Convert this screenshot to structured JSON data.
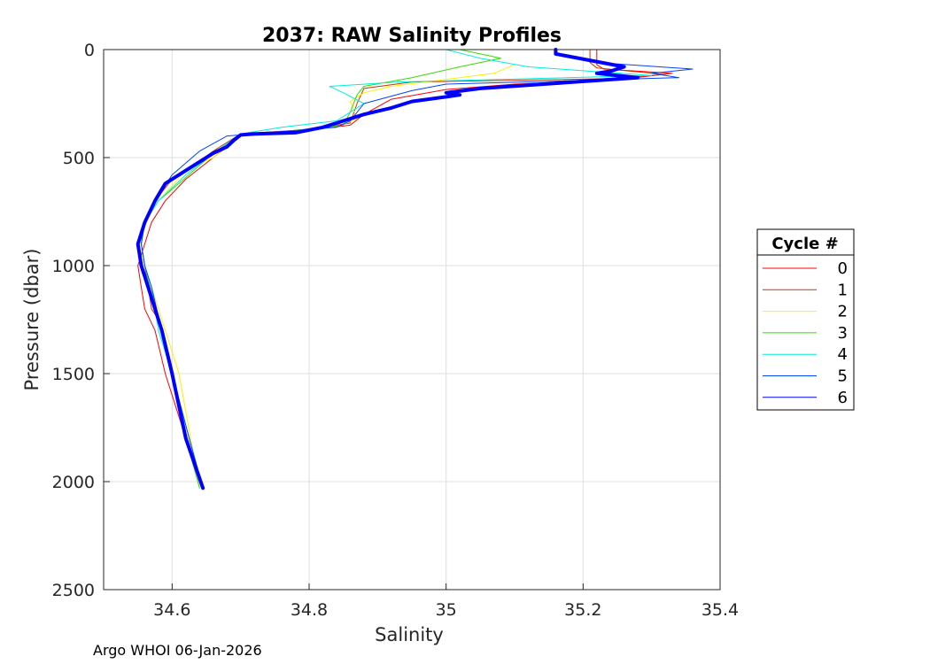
{
  "chart_data": {
    "type": "line",
    "title": "2037: RAW Salinity Profiles",
    "xlabel": "Salinity",
    "ylabel": "Pressure (dbar)",
    "xlim": [
      34.5,
      35.4
    ],
    "ylim": [
      0,
      2500
    ],
    "y_reversed": true,
    "grid": true,
    "xticks": [
      34.6,
      34.8,
      35,
      35.2,
      35.4
    ],
    "xtick_labels": [
      "34.6",
      "34.8",
      "35",
      "35.2",
      "35.4"
    ],
    "yticks": [
      0,
      500,
      1000,
      1500,
      2000,
      2500
    ],
    "ytick_labels": [
      "0",
      "500",
      "1000",
      "1500",
      "2000",
      "2500"
    ],
    "legend": {
      "title": "Cycle #",
      "placement": "outside-right"
    },
    "series": [
      {
        "name": "0",
        "color": "#ff0000",
        "width": 1,
        "x": [
          35.22,
          35.22,
          35.23,
          35.33,
          35.25,
          35.1,
          35.0,
          34.92,
          34.88,
          34.86,
          34.78,
          34.7,
          34.68,
          34.66,
          34.62,
          34.59,
          34.57,
          34.56,
          34.55,
          34.555,
          34.56,
          34.575,
          34.59,
          34.61,
          34.63,
          34.645
        ],
        "y": [
          0,
          70,
          90,
          110,
          140,
          160,
          185,
          230,
          300,
          350,
          380,
          395,
          450,
          500,
          600,
          700,
          800,
          900,
          1000,
          1100,
          1200,
          1300,
          1500,
          1700,
          1900,
          2030
        ]
      },
      {
        "name": "1",
        "color": "#cc3300",
        "width": 1,
        "x": [
          35.21,
          35.21,
          35.22,
          35.32,
          35.24,
          34.95,
          34.88,
          34.87,
          34.86,
          34.8,
          34.7,
          34.66,
          34.63,
          34.6,
          34.575,
          34.56,
          34.555,
          34.56,
          34.565,
          34.57,
          34.58,
          34.6,
          34.62,
          34.645
        ],
        "y": [
          0,
          60,
          85,
          115,
          135,
          150,
          180,
          250,
          340,
          370,
          390,
          470,
          540,
          600,
          700,
          800,
          900,
          1000,
          1100,
          1200,
          1250,
          1500,
          1800,
          2030
        ]
      },
      {
        "name": "2",
        "color": "#ffee00",
        "width": 1,
        "x": [
          35.1,
          35.07,
          34.97,
          34.92,
          34.88,
          34.86,
          34.87,
          34.84,
          34.78,
          34.7,
          34.66,
          34.62,
          34.58,
          34.56,
          34.555,
          34.56,
          34.57,
          34.58,
          34.61,
          34.64
        ],
        "y": [
          70,
          110,
          150,
          170,
          200,
          240,
          320,
          360,
          380,
          395,
          500,
          560,
          700,
          800,
          900,
          1000,
          1100,
          1200,
          1500,
          2030
        ]
      },
      {
        "name": "3",
        "color": "#33dd00",
        "width": 1,
        "x": [
          35.02,
          35.08,
          35.02,
          34.95,
          34.88,
          34.87,
          34.86,
          34.85,
          34.76,
          34.7,
          34.66,
          34.61,
          34.58,
          34.56,
          34.555,
          34.56,
          34.575,
          34.6,
          34.62,
          34.64
        ],
        "y": [
          0,
          40,
          80,
          130,
          170,
          210,
          290,
          350,
          380,
          400,
          480,
          620,
          700,
          800,
          900,
          1000,
          1200,
          1500,
          1800,
          2030
        ]
      },
      {
        "name": "4",
        "color": "#00eedd",
        "width": 1,
        "x": [
          35.0,
          35.05,
          35.12,
          35.3,
          34.93,
          34.83,
          34.85,
          34.88,
          34.84,
          34.76,
          34.7,
          34.66,
          34.62,
          34.58,
          34.56,
          34.555,
          34.56,
          34.57,
          34.58,
          34.6,
          34.625,
          34.645
        ],
        "y": [
          0,
          40,
          80,
          120,
          150,
          170,
          200,
          250,
          330,
          360,
          390,
          480,
          580,
          700,
          800,
          900,
          1000,
          1100,
          1300,
          1500,
          1800,
          2030
        ]
      },
      {
        "name": "5",
        "color": "#0044ff",
        "width": 1,
        "x": [
          35.22,
          35.36,
          35.3,
          35.34,
          35.0,
          34.95,
          34.88,
          34.86,
          34.84,
          34.74,
          34.68,
          34.64,
          34.6,
          34.575,
          34.56,
          34.555,
          34.56,
          34.57,
          34.585,
          34.6,
          34.625,
          34.645
        ],
        "y": [
          60,
          90,
          110,
          130,
          160,
          190,
          250,
          330,
          360,
          385,
          400,
          470,
          580,
          700,
          800,
          900,
          1000,
          1100,
          1300,
          1500,
          1800,
          2030
        ]
      },
      {
        "name": "6",
        "color": "#0000ff",
        "width": 4,
        "x": [
          35.16,
          35.16,
          35.26,
          35.24,
          35.22,
          35.28,
          35.05,
          35.0,
          35.02,
          34.95,
          34.92,
          34.88,
          34.85,
          34.82,
          34.78,
          34.72,
          34.7,
          34.69,
          34.68,
          34.66,
          34.62,
          34.59,
          34.575,
          34.56,
          34.55,
          34.555,
          34.565,
          34.575,
          34.585,
          34.6,
          34.62,
          34.645
        ],
        "y": [
          0,
          20,
          80,
          100,
          110,
          130,
          180,
          200,
          210,
          240,
          270,
          300,
          330,
          360,
          385,
          390,
          395,
          420,
          450,
          480,
          560,
          620,
          700,
          800,
          900,
          1000,
          1100,
          1200,
          1300,
          1500,
          1800,
          2030
        ]
      }
    ]
  },
  "footer_text": "Argo WHOI 06-Jan-2026"
}
